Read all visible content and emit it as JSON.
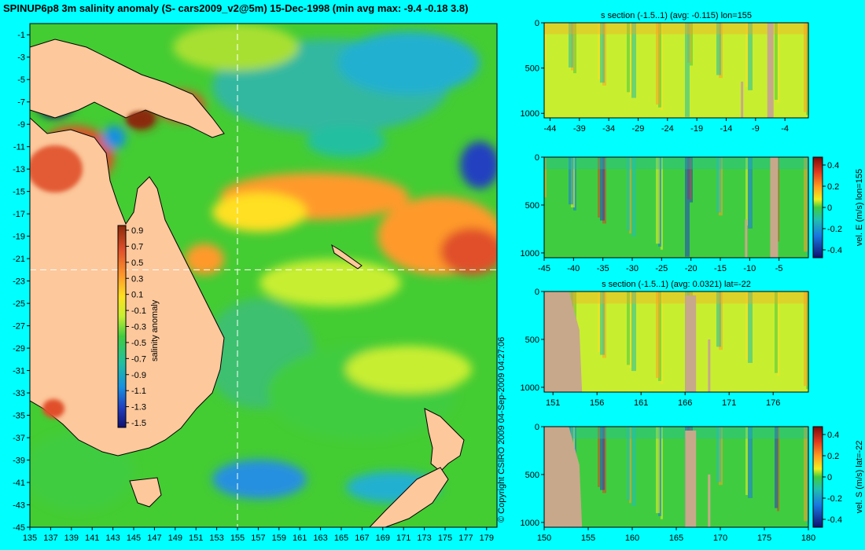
{
  "title": "SPINUP6p8 3m salinity anomaly (S- cars2009_v2@5m) 15-Dec-1998 (min avg max: -9.4 -0.18 3.8)",
  "copyright": "© Copyright CSIRO 2009   04-Sep-2009 04:27:06",
  "map": {
    "lon_ticks": [
      "135",
      "137",
      "139",
      "141",
      "143",
      "145",
      "147",
      "149",
      "151",
      "153",
      "155",
      "157",
      "159",
      "161",
      "163",
      "165",
      "167",
      "169",
      "171",
      "173",
      "175",
      "177",
      "179"
    ],
    "lat_ticks": [
      "-1",
      "-3",
      "-5",
      "-7",
      "-9",
      "-11",
      "-13",
      "-15",
      "-17",
      "-19",
      "-21",
      "-23",
      "-25",
      "-27",
      "-29",
      "-31",
      "-33",
      "-35",
      "-37",
      "-39",
      "-41",
      "-43",
      "-45"
    ],
    "xlim": [
      135,
      180
    ],
    "ylim": [
      -45,
      0
    ],
    "section_lon": 155,
    "section_lat": -22,
    "colorbar": {
      "label": "salinity anomaly",
      "ticks": [
        "0.9",
        "0.7",
        "0.5",
        "0.3",
        "0.1",
        "-0.1",
        "-0.3",
        "-0.5",
        "-0.7",
        "-0.9",
        "-1.1",
        "-1.3",
        "-1.5"
      ],
      "range": [
        -1.5,
        0.9
      ]
    },
    "colors": {
      "land": "#fcc89c",
      "ocean": "#44cc33",
      "vline": "#ffffff"
    }
  },
  "panels": [
    {
      "id": "s-lon",
      "title": "s section (-1.5..1) (avg: -0.115) lon=155",
      "x_ticks": [
        "-44",
        "-39",
        "-34",
        "-29",
        "-24",
        "-19",
        "-14",
        "-9",
        "-4"
      ],
      "x_vals": [
        -44,
        -39,
        -34,
        -29,
        -24,
        -19,
        -14,
        -9,
        -4
      ],
      "xlim": [
        -45,
        0
      ],
      "y_ticks": [
        "0",
        "500",
        "1000"
      ],
      "ylim": [
        0,
        1050
      ]
    },
    {
      "id": "v-lon",
      "title": "",
      "x_ticks": [
        "-45",
        "-40",
        "-35",
        "-30",
        "-25",
        "-20",
        "-15",
        "-10",
        "-5"
      ],
      "x_vals": [
        -45,
        -40,
        -35,
        -30,
        -25,
        -20,
        -15,
        -10,
        -5
      ],
      "xlim": [
        -45,
        0
      ],
      "y_ticks": [
        "0",
        "500",
        "1000"
      ],
      "ylim": [
        0,
        1050
      ],
      "colorbar": {
        "label": "vel. E (m/s) lon=155",
        "ticks": [
          "0.4",
          "0.2",
          "0",
          "-0.2",
          "-0.4"
        ]
      }
    },
    {
      "id": "s-lat",
      "title": "s section (-1.5..1) (avg: 0.0321) lat=-22",
      "x_ticks": [
        "151",
        "156",
        "161",
        "166",
        "171",
        "176"
      ],
      "x_vals": [
        151,
        156,
        161,
        166,
        171,
        176
      ],
      "xlim": [
        150,
        180
      ],
      "y_ticks": [
        "0",
        "500",
        "1000"
      ],
      "ylim": [
        0,
        1050
      ]
    },
    {
      "id": "v-lat",
      "title": "",
      "x_ticks": [
        "150",
        "155",
        "160",
        "165",
        "170",
        "175",
        "180"
      ],
      "x_vals": [
        150,
        155,
        160,
        165,
        170,
        175,
        180
      ],
      "xlim": [
        150,
        180
      ],
      "y_ticks": [
        "0",
        "500",
        "1000"
      ],
      "ylim": [
        0,
        1050
      ],
      "colorbar": {
        "label": "vel. S (m/s) lat=-22",
        "ticks": [
          "0.4",
          "0.2",
          "0",
          "-0.2",
          "-0.4"
        ]
      }
    }
  ]
}
